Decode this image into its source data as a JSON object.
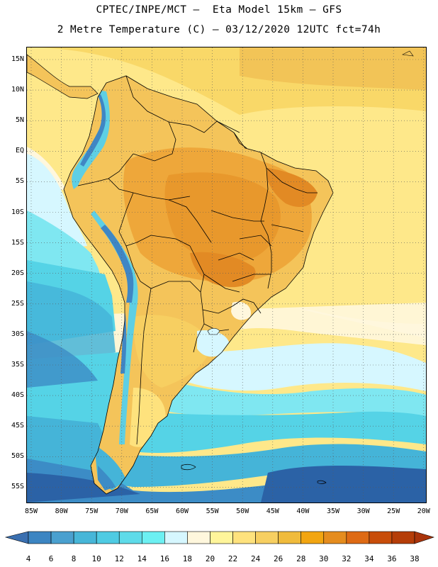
{
  "header": {
    "line1": "CPTEC/INPE/MCT –  Eta Model 15km – GFS",
    "line2": "2 Metre Temperature (C) – 03/12/2020 12UTC fct=74h"
  },
  "axes": {
    "lat_labels": [
      "15N",
      "10N",
      "5N",
      "EQ",
      "5S",
      "10S",
      "15S",
      "20S",
      "25S",
      "30S",
      "35S",
      "40S",
      "45S",
      "50S",
      "55S"
    ],
    "lon_labels": [
      "85W",
      "80W",
      "75W",
      "70W",
      "65W",
      "60W",
      "55W",
      "50W",
      "45W",
      "40W",
      "35W",
      "30W",
      "25W",
      "20W"
    ]
  },
  "colorbar": {
    "labels": [
      "4",
      "6",
      "8",
      "10",
      "12",
      "14",
      "16",
      "18",
      "20",
      "22",
      "24",
      "26",
      "28",
      "30",
      "32",
      "34",
      "36",
      "38"
    ],
    "colors": [
      "#3a6fb0",
      "#3c85c2",
      "#4aa0cf",
      "#47b6d8",
      "#4fcbe3",
      "#5edbe9",
      "#6cf0f2",
      "#d6f7ff",
      "#fff7dd",
      "#fff59a",
      "#fee27d",
      "#f7cf61",
      "#f0bb3c",
      "#f2a511",
      "#e58c1e",
      "#de6a14",
      "#c84d0a",
      "#b53d08",
      "#a9330a"
    ]
  },
  "map_colors": {
    "ocean_cold": "#2b62a6",
    "ocean_mid": "#3c8cc6",
    "ocean_cool": "#45b4d8",
    "ocean_teal": "#55d3e6",
    "ocean_light": "#7fe7f1",
    "ocean_pale": "#d6f7ff",
    "ocean_cream": "#fff7dd",
    "ocean_warm": "#fee88a",
    "ocean_warmer": "#f9d868",
    "land_base": "#f4c45a",
    "land_hot": "#eea73a",
    "land_hotter": "#e28a24",
    "andes_cold": "#3f86c4",
    "andes_cool": "#5ecfe4"
  }
}
